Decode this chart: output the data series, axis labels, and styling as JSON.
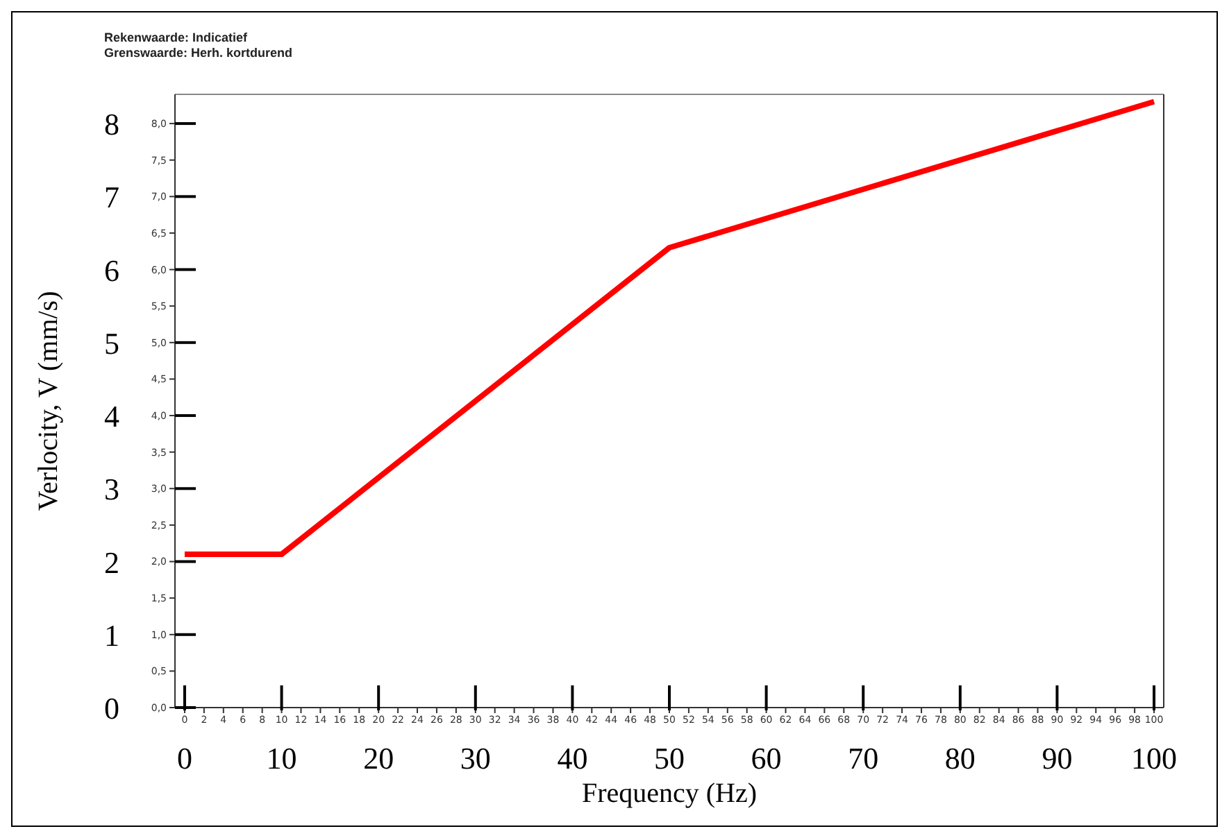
{
  "chart_data": {
    "type": "line",
    "xlabel": "Frequency (Hz)",
    "ylabel": "Verlocity, V (mm/s)",
    "annotations": [
      "Rekenwaarde: Indicatief",
      "Grenswaarde: Herh. kortdurend"
    ],
    "x": [
      0,
      10,
      50,
      100
    ],
    "series": [
      {
        "color": "#ff0000",
        "values": [
          2.1,
          2.1,
          6.3,
          8.3
        ]
      }
    ],
    "marker": "none",
    "line_style": "solid",
    "grid": false,
    "legend": false,
    "xlim": [
      -1,
      101
    ],
    "xticks": [
      0,
      10,
      20,
      30,
      40,
      50,
      60,
      70,
      80,
      90,
      100
    ],
    "x2lim": [
      -1,
      101
    ],
    "x2ticks": [
      0,
      2,
      4,
      6,
      8,
      10,
      12,
      14,
      16,
      18,
      20,
      22,
      24,
      26,
      28,
      30,
      32,
      34,
      36,
      38,
      40,
      42,
      44,
      46,
      48,
      50,
      52,
      54,
      56,
      58,
      60,
      62,
      64,
      66,
      68,
      70,
      72,
      74,
      76,
      78,
      80,
      82,
      84,
      86,
      88,
      90,
      92,
      94,
      96,
      98,
      100
    ],
    "ylim": [
      0,
      8.4
    ],
    "yticks": [
      0,
      1,
      2,
      3,
      4,
      5,
      6,
      7,
      8
    ],
    "y2lim": [
      0,
      8.4
    ],
    "y2ticks": [
      {
        "value": 0,
        "label": "0,0"
      },
      {
        "value": 0.5,
        "label": "0,5"
      },
      {
        "value": 1,
        "label": "1,0"
      },
      {
        "value": 1.5,
        "label": "1,5"
      },
      {
        "value": 2,
        "label": "2,0"
      },
      {
        "value": 2.5,
        "label": "2,5"
      },
      {
        "value": 3,
        "label": "3,0"
      },
      {
        "value": 3.5,
        "label": "3,5"
      },
      {
        "value": 4,
        "label": "4,0"
      },
      {
        "value": 4.5,
        "label": "4,5"
      },
      {
        "value": 5,
        "label": "5,0"
      },
      {
        "value": 5.5,
        "label": "5,5"
      },
      {
        "value": 6,
        "label": "6,0"
      },
      {
        "value": 6.5,
        "label": "6,5"
      },
      {
        "value": 7,
        "label": "7,0"
      },
      {
        "value": 7.5,
        "label": "7,5"
      },
      {
        "value": 8,
        "label": "8,0"
      }
    ]
  }
}
